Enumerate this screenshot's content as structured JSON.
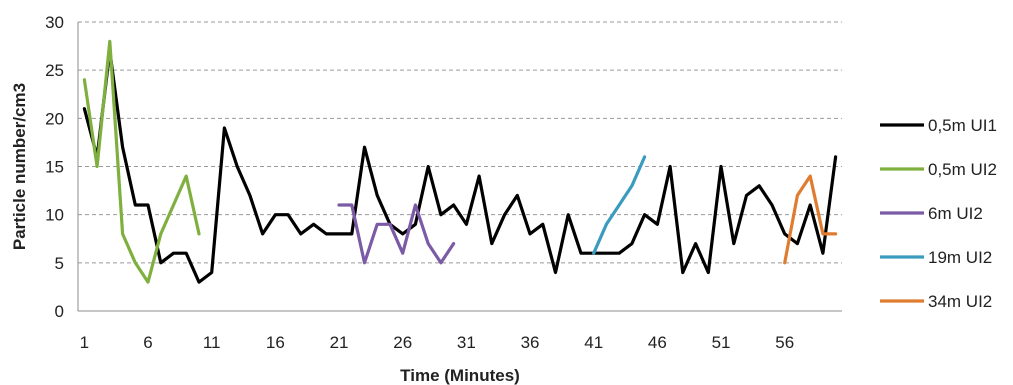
{
  "chart_data": {
    "type": "line",
    "xlabel": "Time (Minutes)",
    "ylabel": "Particle number/cm3",
    "xlim": [
      1,
      60
    ],
    "ylim": [
      0,
      30
    ],
    "x_ticks": [
      1,
      6,
      11,
      16,
      21,
      26,
      31,
      36,
      41,
      46,
      51,
      56
    ],
    "x_tick_labels": [
      "1",
      "6",
      "11",
      "16",
      "21",
      "26",
      "31",
      "36",
      "41",
      "46",
      "51",
      "56"
    ],
    "y_ticks": [
      0,
      5,
      10,
      15,
      20,
      25,
      30
    ],
    "y_tick_labels": [
      "0",
      "5",
      "10",
      "15",
      "20",
      "25",
      "30"
    ],
    "grid": "horizontal dashed",
    "legend_position": "right",
    "series": [
      {
        "name": "0,5m UI1",
        "color": "#000000",
        "x": [
          1,
          2,
          3,
          4,
          5,
          6,
          7,
          8,
          9,
          10,
          11,
          12,
          13,
          14,
          15,
          16,
          17,
          18,
          19,
          20,
          21,
          22,
          23,
          24,
          25,
          26,
          27,
          28,
          29,
          30,
          31,
          32,
          33,
          34,
          35,
          36,
          37,
          38,
          39,
          40,
          41,
          42,
          43,
          44,
          45,
          46,
          47,
          48,
          49,
          50,
          51,
          52,
          53,
          54,
          55,
          56,
          57,
          58,
          59,
          60
        ],
        "values": [
          21,
          16,
          27,
          17,
          11,
          11,
          5,
          6,
          6,
          3,
          4,
          19,
          15,
          12,
          8,
          10,
          10,
          8,
          9,
          8,
          8,
          8,
          17,
          12,
          9,
          8,
          9,
          15,
          10,
          11,
          9,
          14,
          7,
          10,
          12,
          8,
          9,
          4,
          10,
          6,
          6,
          6,
          6,
          7,
          10,
          9,
          15,
          4,
          7,
          4,
          15,
          7,
          12,
          13,
          11,
          8,
          7,
          11,
          6,
          16
        ]
      },
      {
        "name": "0,5m UI2",
        "color": "#7fb03f",
        "x": [
          1,
          2,
          3,
          4,
          5,
          6,
          7,
          8,
          9,
          10
        ],
        "values": [
          24,
          15,
          28,
          8,
          5,
          3,
          8,
          11,
          14,
          8
        ]
      },
      {
        "name": "6m UI2",
        "color": "#7b5aa6",
        "x": [
          21,
          22,
          23,
          24,
          25,
          26,
          27,
          28,
          29,
          30
        ],
        "values": [
          11,
          11,
          5,
          9,
          9,
          6,
          11,
          7,
          5,
          7
        ]
      },
      {
        "name": "19m UI2",
        "color": "#3a9bbf",
        "x": [
          41,
          42,
          43,
          44,
          45
        ],
        "values": [
          6,
          9,
          11,
          13,
          16
        ]
      },
      {
        "name": "34m UI2",
        "color": "#e07c30",
        "x": [
          56,
          57,
          58,
          59,
          60
        ],
        "values": [
          5,
          12,
          14,
          8,
          8
        ]
      }
    ]
  }
}
